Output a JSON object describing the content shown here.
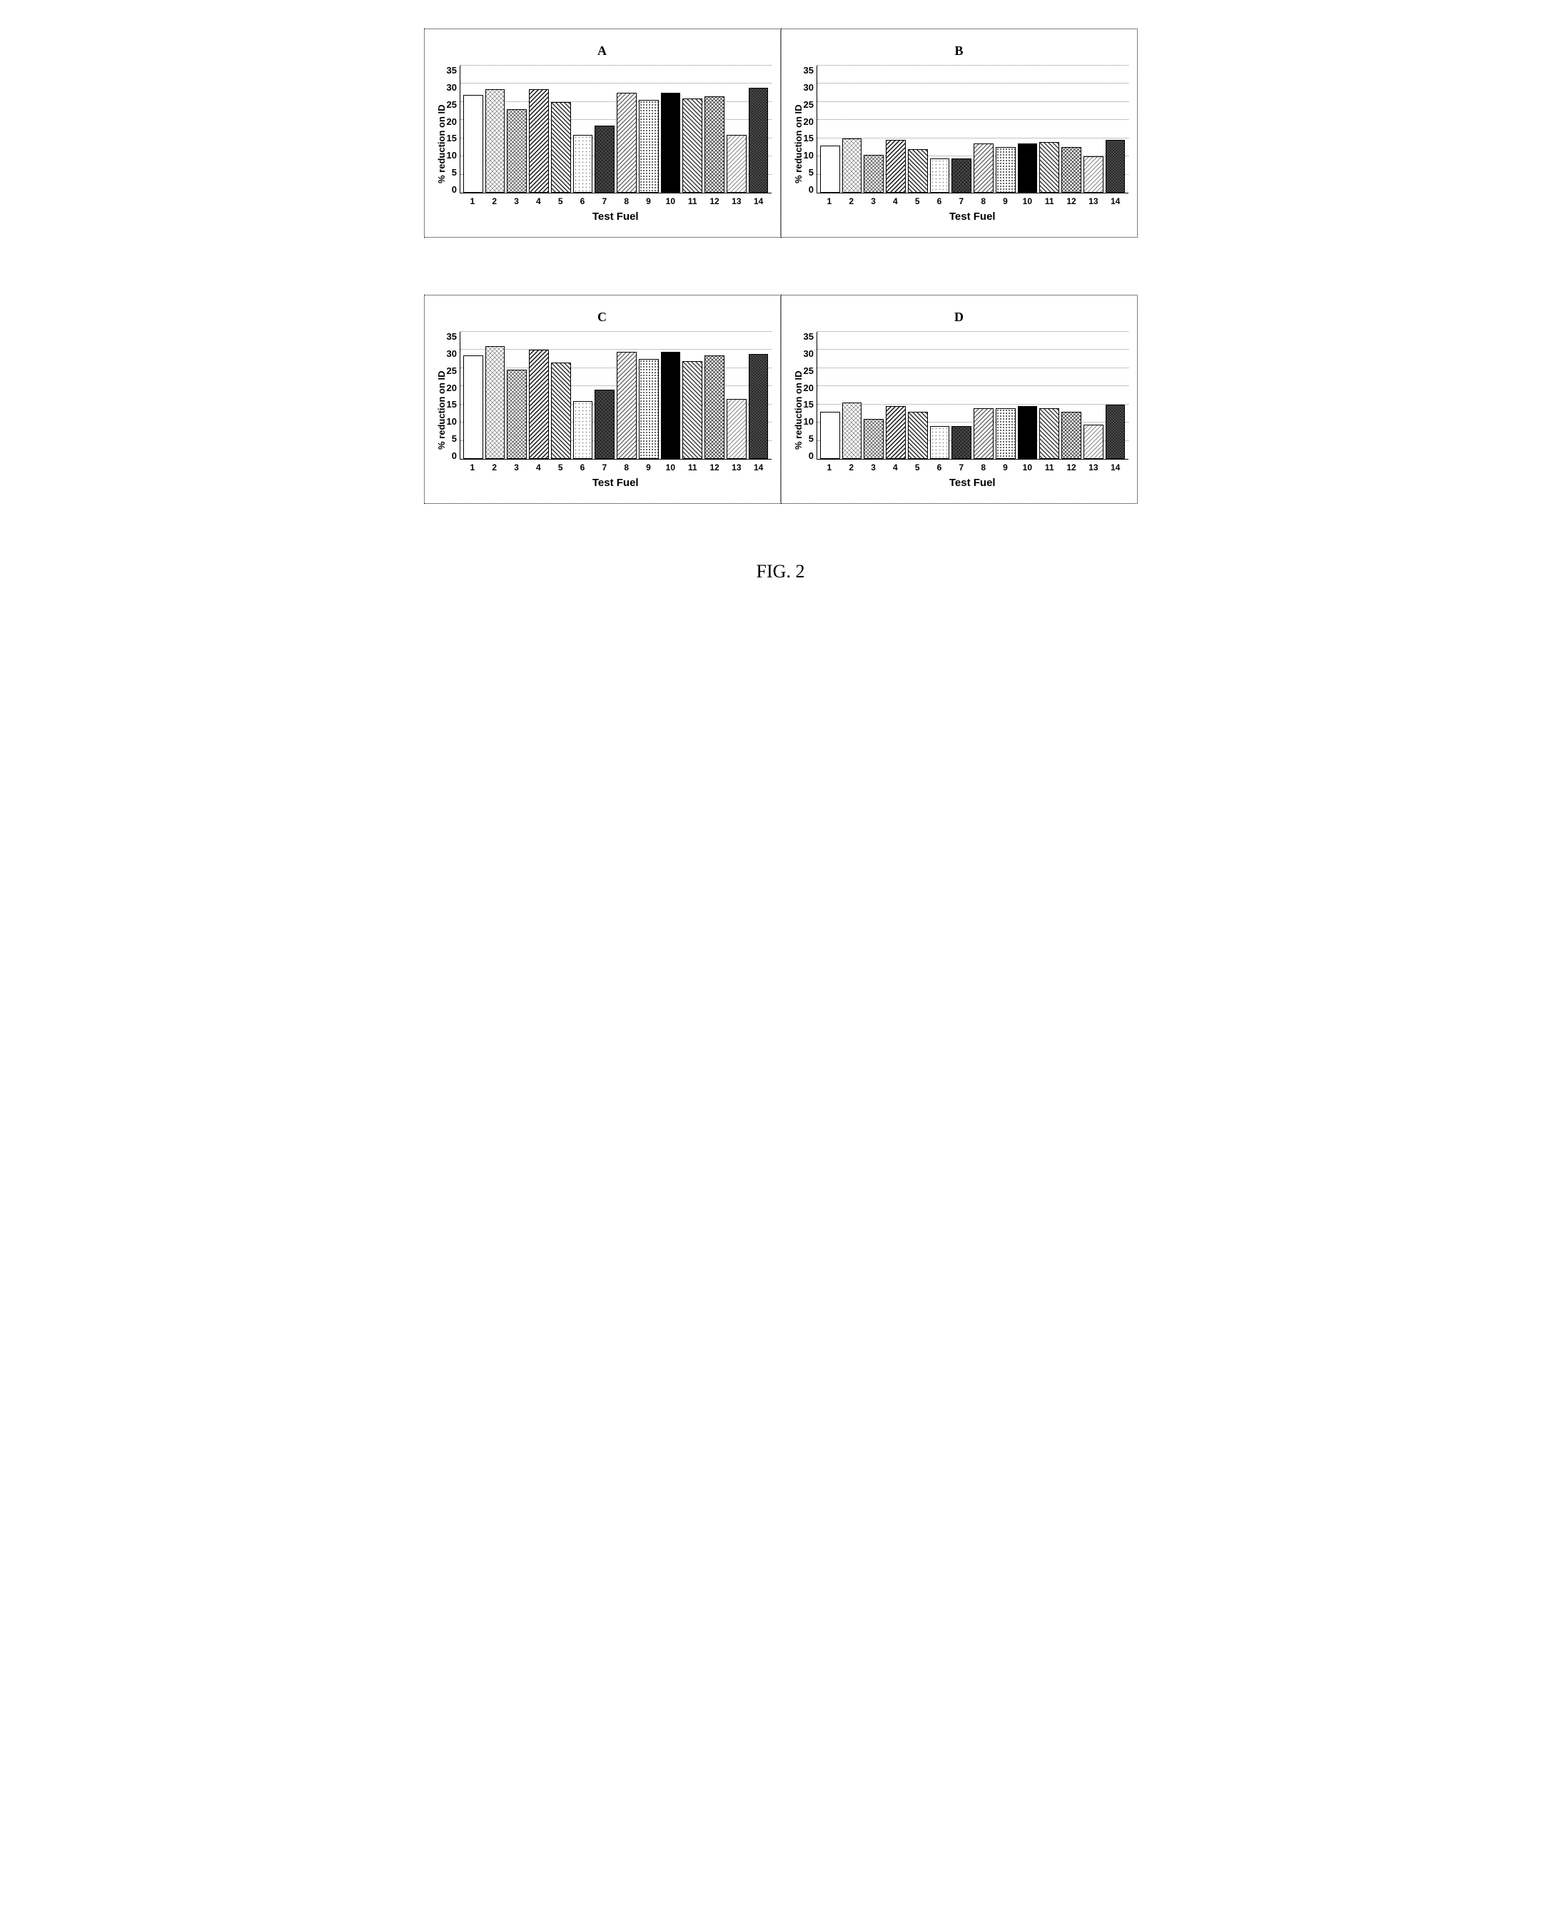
{
  "figure_caption": "FIG. 2",
  "y_axis_label": "% reduction on ID",
  "x_axis_label": "Test Fuel",
  "y_ticks": [
    35,
    30,
    25,
    20,
    15,
    10,
    5,
    0
  ],
  "x_categories": [
    "1",
    "2",
    "3",
    "4",
    "5",
    "6",
    "7",
    "8",
    "9",
    "10",
    "11",
    "12",
    "13",
    "14"
  ],
  "ylim": [
    0,
    35
  ],
  "ytick_step": 5,
  "grid_color": "#888888",
  "border_color": "#000000",
  "panel_border": "dotted",
  "bar_border_color": "#000000",
  "background_color": "#ffffff",
  "title_fontsize": 18,
  "label_fontsize": 15,
  "tick_fontsize": 13,
  "font_family": "Arial",
  "bar_patterns": [
    "pat-white",
    "pat-diamond-light",
    "pat-diamond-mid",
    "pat-diag-dark",
    "pat-diag-back",
    "pat-dots-light",
    "pat-cross-dark",
    "pat-diag-mid",
    "pat-dots-mid",
    "pat-black",
    "pat-diag-gray",
    "pat-cross-mid",
    "pat-diag-light",
    "pat-cross-dense"
  ],
  "panels": [
    {
      "id": "A",
      "title": "A",
      "type": "bar",
      "values": [
        27,
        28.5,
        23,
        28.5,
        25,
        16,
        18.5,
        27.5,
        25.5,
        27.5,
        26,
        26.5,
        16,
        29
      ]
    },
    {
      "id": "B",
      "title": "B",
      "type": "bar",
      "values": [
        13,
        15,
        10.5,
        14.5,
        12,
        9.5,
        9.5,
        13.5,
        12.5,
        13.5,
        14,
        12.5,
        10,
        14.5
      ]
    },
    {
      "id": "C",
      "title": "C",
      "type": "bar",
      "values": [
        28.5,
        31,
        24.5,
        30,
        26.5,
        16,
        19,
        29.5,
        27.5,
        29.5,
        27,
        28.5,
        16.5,
        29
      ]
    },
    {
      "id": "D",
      "title": "D",
      "type": "bar",
      "values": [
        13,
        15.5,
        11,
        14.5,
        13,
        9,
        9,
        14,
        14,
        14.5,
        14,
        13,
        9.5,
        15
      ]
    }
  ]
}
